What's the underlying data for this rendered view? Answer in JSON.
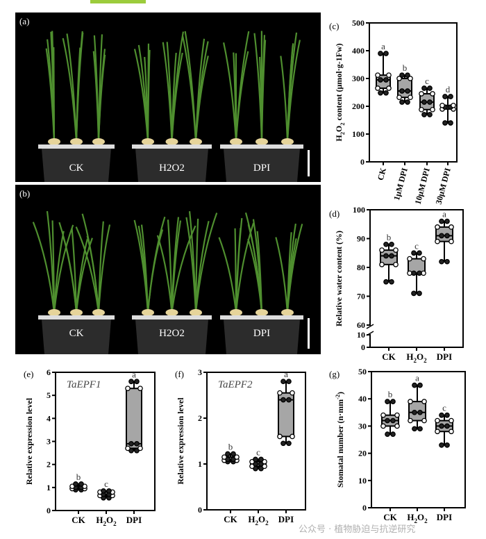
{
  "photos": [
    {
      "panel": "(a)",
      "labels": [
        "CK",
        "H2O2",
        "DPI"
      ]
    },
    {
      "panel": "(b)",
      "labels": [
        "CK",
        "H2O2",
        "DPI"
      ]
    }
  ],
  "watermark": "公众号 · 植物胁迫与抗逆研究",
  "colors": {
    "box_fill": "#a6a6a6",
    "photo_bg": "#000000",
    "leaf": "#4f8f2f",
    "accent_bar": "#9ccc3c"
  },
  "chart_data": [
    {
      "panel": "(c)",
      "type": "box",
      "ylabel": "H2O2 content (μmol·g-1Fw)",
      "ylim": [
        0,
        500
      ],
      "yticks": [
        0,
        100,
        200,
        300,
        400,
        500
      ],
      "categories": [
        "CK",
        "1μM DPI",
        "10μM DPI",
        "30μM DPI"
      ],
      "x_rotated": true,
      "boxes": [
        [
          248,
          265,
          295,
          312,
          390
        ],
        [
          215,
          232,
          255,
          300,
          312
        ],
        [
          170,
          188,
          215,
          245,
          265
        ],
        [
          140,
          190,
          197,
          203,
          235
        ]
      ],
      "letters": [
        "a",
        "b",
        "c",
        "d"
      ]
    },
    {
      "panel": "(d)",
      "type": "box",
      "ylabel": "Relative water content (%)",
      "ylim": [
        0,
        100
      ],
      "axis_break": [
        10,
        60
      ],
      "yticks": [
        0,
        10,
        60,
        70,
        80,
        90,
        100
      ],
      "categories": [
        "CK",
        "H2O2",
        "DPI"
      ],
      "boxes": [
        [
          75,
          81,
          84,
          86,
          88
        ],
        [
          71,
          78,
          78,
          83,
          85
        ],
        [
          82,
          89,
          91,
          94,
          96
        ]
      ],
      "letters": [
        "b",
        "c",
        "a"
      ]
    },
    {
      "panel": "(e)",
      "type": "box",
      "title": "TaEPF1",
      "ylabel": "Relative expression level",
      "ylim": [
        0,
        6
      ],
      "yticks": [
        0,
        1,
        2,
        3,
        4,
        5,
        6
      ],
      "categories": [
        "CK",
        "H2O2",
        "DPI"
      ],
      "boxes": [
        [
          0.9,
          0.95,
          1.0,
          1.05,
          1.15
        ],
        [
          0.55,
          0.65,
          0.7,
          0.8,
          0.85
        ],
        [
          2.6,
          2.7,
          2.9,
          5.3,
          5.6
        ]
      ],
      "letters": [
        "b",
        "c",
        "a"
      ]
    },
    {
      "panel": "(f)",
      "type": "box",
      "title": "TaEPF2",
      "ylabel": "Relative expression level",
      "ylim": [
        0,
        3
      ],
      "yticks": [
        0,
        1,
        2,
        3
      ],
      "categories": [
        "CK",
        "H2O2",
        "DPI"
      ],
      "boxes": [
        [
          1.05,
          1.08,
          1.1,
          1.15,
          1.22
        ],
        [
          0.9,
          0.95,
          1.0,
          1.05,
          1.1
        ],
        [
          1.45,
          1.6,
          2.4,
          2.55,
          2.8
        ]
      ],
      "letters": [
        "b",
        "c",
        "a"
      ]
    },
    {
      "panel": "(g)",
      "type": "box",
      "ylabel": "Stomatal number (n·mm-2)",
      "ylim": [
        0,
        50
      ],
      "yticks": [
        0,
        10,
        20,
        30,
        40,
        50
      ],
      "categories": [
        "CK",
        "H2O2",
        "DPI"
      ],
      "boxes": [
        [
          27,
          30,
          32,
          34,
          39
        ],
        [
          29,
          32,
          35,
          39,
          45
        ],
        [
          23,
          28,
          30,
          32,
          34
        ]
      ],
      "letters": [
        "b",
        "a",
        "c"
      ]
    }
  ]
}
